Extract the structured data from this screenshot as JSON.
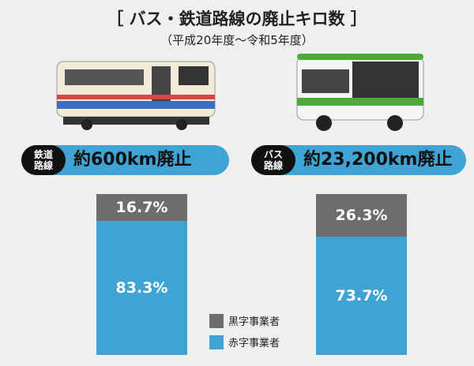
{
  "chart_data": {
    "type": "stacked-bar-100",
    "title": "［ バス・鉄道路線の廃止キロ数 ］",
    "subtitle": "（平成20年度～令和5年度）",
    "categories": [
      "鉄道路線",
      "バス路線"
    ],
    "headlines": [
      "約600km廃止",
      "約23,200km廃止"
    ],
    "series": [
      {
        "name": "黒字事業者",
        "color": "#6d6d6d",
        "values": [
          16.7,
          26.3
        ],
        "value_labels": [
          "16.7%",
          "26.3%"
        ]
      },
      {
        "name": "赤字事業者",
        "color": "#3fa4d3",
        "values": [
          83.3,
          73.7
        ],
        "value_labels": [
          "83.3%",
          "73.7%"
        ]
      }
    ]
  }
}
